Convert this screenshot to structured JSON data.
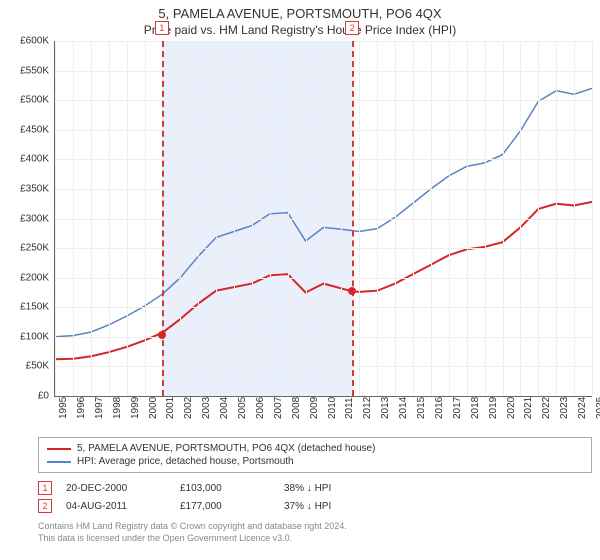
{
  "title": "5, PAMELA AVENUE, PORTSMOUTH, PO6 4QX",
  "subtitle": "Price paid vs. HM Land Registry's House Price Index (HPI)",
  "chart": {
    "type": "line",
    "x_start": 1995,
    "x_end": 2025,
    "y_min": 0,
    "y_max": 600,
    "y_tick_step": 50,
    "y_ticks": [
      "£0",
      "£50K",
      "£100K",
      "£150K",
      "£200K",
      "£250K",
      "£300K",
      "£350K",
      "£400K",
      "£450K",
      "£500K",
      "£550K",
      "£600K"
    ],
    "x_ticks": [
      1995,
      1996,
      1997,
      1998,
      1999,
      2000,
      2001,
      2002,
      2003,
      2004,
      2005,
      2006,
      2007,
      2008,
      2009,
      2010,
      2011,
      2012,
      2013,
      2014,
      2015,
      2016,
      2017,
      2018,
      2019,
      2020,
      2021,
      2022,
      2023,
      2024,
      2025
    ],
    "grid_color": "#eeeeee",
    "axis_color": "#666666",
    "band": {
      "start": 2000.97,
      "end": 2011.6,
      "color": "#eaf0fb"
    },
    "vlines": [
      {
        "x": 2000.97,
        "color": "#d13b3b",
        "badge": "1"
      },
      {
        "x": 2011.6,
        "color": "#d13b3b",
        "badge": "2"
      }
    ],
    "series": [
      {
        "name": "property",
        "label": "5, PAMELA AVENUE, PORTSMOUTH, PO6 4QX (detached house)",
        "color": "#d62728",
        "line_width": 2,
        "data": [
          [
            1995,
            62
          ],
          [
            1996,
            63
          ],
          [
            1997,
            67
          ],
          [
            1998,
            74
          ],
          [
            1999,
            83
          ],
          [
            2000,
            94
          ],
          [
            2001,
            107
          ],
          [
            2002,
            130
          ],
          [
            2003,
            156
          ],
          [
            2004,
            178
          ],
          [
            2005,
            184
          ],
          [
            2006,
            190
          ],
          [
            2007,
            204
          ],
          [
            2008,
            206
          ],
          [
            2009,
            175
          ],
          [
            2010,
            190
          ],
          [
            2011.6,
            177
          ],
          [
            2012,
            176
          ],
          [
            2013,
            178
          ],
          [
            2014,
            190
          ],
          [
            2015,
            206
          ],
          [
            2016,
            222
          ],
          [
            2017,
            238
          ],
          [
            2018,
            248
          ],
          [
            2019,
            252
          ],
          [
            2020,
            260
          ],
          [
            2021,
            285
          ],
          [
            2022,
            316
          ],
          [
            2023,
            325
          ],
          [
            2024,
            322
          ],
          [
            2025,
            328
          ]
        ],
        "markers": [
          {
            "x": 2000.97,
            "y": 103
          },
          {
            "x": 2011.6,
            "y": 177
          }
        ]
      },
      {
        "name": "hpi",
        "label": "HPI: Average price, detached house, Portsmouth",
        "color": "#5b82c4",
        "line_width": 1.5,
        "data": [
          [
            1995,
            100
          ],
          [
            1996,
            102
          ],
          [
            1997,
            108
          ],
          [
            1998,
            120
          ],
          [
            1999,
            135
          ],
          [
            2000,
            152
          ],
          [
            2001,
            172
          ],
          [
            2002,
            200
          ],
          [
            2003,
            236
          ],
          [
            2004,
            268
          ],
          [
            2005,
            278
          ],
          [
            2006,
            288
          ],
          [
            2007,
            308
          ],
          [
            2008,
            310
          ],
          [
            2009,
            262
          ],
          [
            2010,
            285
          ],
          [
            2011,
            282
          ],
          [
            2012,
            278
          ],
          [
            2013,
            283
          ],
          [
            2014,
            302
          ],
          [
            2015,
            326
          ],
          [
            2016,
            350
          ],
          [
            2017,
            372
          ],
          [
            2018,
            388
          ],
          [
            2019,
            394
          ],
          [
            2020,
            408
          ],
          [
            2021,
            448
          ],
          [
            2022,
            498
          ],
          [
            2023,
            516
          ],
          [
            2024,
            510
          ],
          [
            2025,
            520
          ]
        ]
      }
    ]
  },
  "legend": [
    {
      "color": "#d62728",
      "label": "5, PAMELA AVENUE, PORTSMOUTH, PO6 4QX (detached house)"
    },
    {
      "color": "#5b82c4",
      "label": "HPI: Average price, detached house, Portsmouth"
    }
  ],
  "sales": [
    {
      "badge": "1",
      "date": "20-DEC-2000",
      "price": "£103,000",
      "diff": "38% ↓ HPI"
    },
    {
      "badge": "2",
      "date": "04-AUG-2011",
      "price": "£177,000",
      "diff": "37% ↓ HPI"
    }
  ],
  "footer_lines": [
    "Contains HM Land Registry data © Crown copyright and database right 2024.",
    "This data is licensed under the Open Government Licence v3.0."
  ]
}
